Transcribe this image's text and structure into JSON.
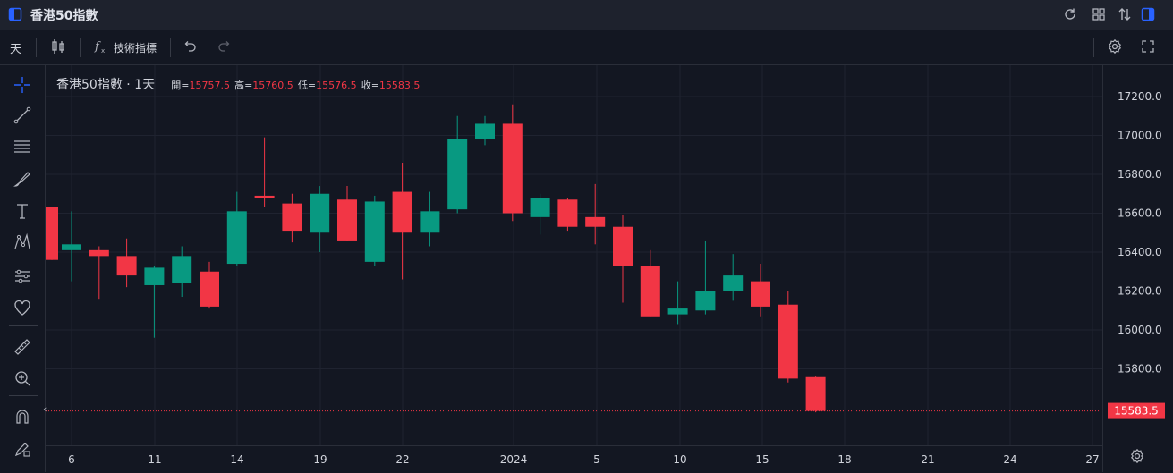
{
  "window": {
    "title": "香港50指數"
  },
  "toolbar": {
    "interval": "天",
    "indicators_label": "技術指標"
  },
  "legend": {
    "symbol": "香港50指數 · 1天",
    "open_label": "開=",
    "open_value": "15757.5",
    "high_label": "高=",
    "high_value": "15760.5",
    "low_label": "低=",
    "low_value": "15576.5",
    "close_label": "收=",
    "close_value": "15583.5"
  },
  "icons": {
    "top": [
      "panel-icon",
      "refresh-icon",
      "layout-grid-icon",
      "compare-arrows-icon",
      "panel-right-icon"
    ],
    "toolbar": [
      "candlestick-icon",
      "function-icon",
      "undo-icon",
      "redo-icon",
      "settings-icon",
      "fullscreen-icon"
    ],
    "left": [
      "crosshair-icon",
      "trend-line-icon",
      "horizontal-lines-icon",
      "brush-icon",
      "text-icon",
      "pattern-icon",
      "prediction-icon",
      "heart-icon",
      "ruler-icon",
      "zoom-in-icon",
      "magnet-icon",
      "lock-pen-icon"
    ]
  },
  "colors": {
    "up": "#089981",
    "down": "#f23645",
    "background": "#131722"
  },
  "chart_data": {
    "type": "candlestick",
    "title": "香港50指數 · 1天",
    "ylim": [
      15500,
      17300
    ],
    "y_ticks": [
      15800,
      16000,
      16200,
      16400,
      16600,
      16800,
      17000,
      17200
    ],
    "y_tick_labels": [
      "15800.0",
      "16000.0",
      "16200.0",
      "16400.0",
      "16600.0",
      "16800.0",
      "17000.0",
      "17200.0"
    ],
    "x_tick_labels": [
      "6",
      "11",
      "14",
      "19",
      "22",
      "2024",
      "5",
      "10",
      "15",
      "18",
      "21",
      "24",
      "27"
    ],
    "last_price_label": "15583.5",
    "grid": true,
    "candles": [
      {
        "open": 16630,
        "high": 16630,
        "low": 16360,
        "close": 16360
      },
      {
        "open": 16410,
        "high": 16610,
        "low": 16250,
        "close": 16440
      },
      {
        "open": 16410,
        "high": 16430,
        "low": 16160,
        "close": 16380
      },
      {
        "open": 16380,
        "high": 16470,
        "low": 16220,
        "close": 16280
      },
      {
        "open": 16230,
        "high": 16330,
        "low": 15960,
        "close": 16320
      },
      {
        "open": 16240,
        "high": 16430,
        "low": 16170,
        "close": 16380
      },
      {
        "open": 16300,
        "high": 16350,
        "low": 16110,
        "close": 16120
      },
      {
        "open": 16340,
        "high": 16710,
        "low": 16330,
        "close": 16610
      },
      {
        "open": 16690,
        "high": 16990,
        "low": 16630,
        "close": 16680
      },
      {
        "open": 16650,
        "high": 16700,
        "low": 16450,
        "close": 16510
      },
      {
        "open": 16500,
        "high": 16740,
        "low": 16400,
        "close": 16700
      },
      {
        "open": 16670,
        "high": 16740,
        "low": 16460,
        "close": 16460
      },
      {
        "open": 16350,
        "high": 16690,
        "low": 16330,
        "close": 16660
      },
      {
        "open": 16710,
        "high": 16860,
        "low": 16260,
        "close": 16500
      },
      {
        "open": 16500,
        "high": 16710,
        "low": 16430,
        "close": 16610
      },
      {
        "open": 16620,
        "high": 17100,
        "low": 16600,
        "close": 16980
      },
      {
        "open": 16980,
        "high": 17100,
        "low": 16950,
        "close": 17060
      },
      {
        "open": 17060,
        "high": 17160,
        "low": 16560,
        "close": 16600
      },
      {
        "open": 16580,
        "high": 16700,
        "low": 16490,
        "close": 16680
      },
      {
        "open": 16670,
        "high": 16680,
        "low": 16510,
        "close": 16530
      },
      {
        "open": 16580,
        "high": 16750,
        "low": 16440,
        "close": 16530
      },
      {
        "open": 16530,
        "high": 16590,
        "low": 16140,
        "close": 16330
      },
      {
        "open": 16330,
        "high": 16410,
        "low": 16070,
        "close": 16070
      },
      {
        "open": 16080,
        "high": 16250,
        "low": 16030,
        "close": 16110
      },
      {
        "open": 16100,
        "high": 16460,
        "low": 16080,
        "close": 16200
      },
      {
        "open": 16200,
        "high": 16390,
        "low": 16150,
        "close": 16280
      },
      {
        "open": 16250,
        "high": 16340,
        "low": 16070,
        "close": 16120
      },
      {
        "open": 16130,
        "high": 16200,
        "low": 15730,
        "close": 15750
      },
      {
        "open": 15757.5,
        "high": 15760.5,
        "low": 15576.5,
        "close": 15583.5
      }
    ]
  }
}
